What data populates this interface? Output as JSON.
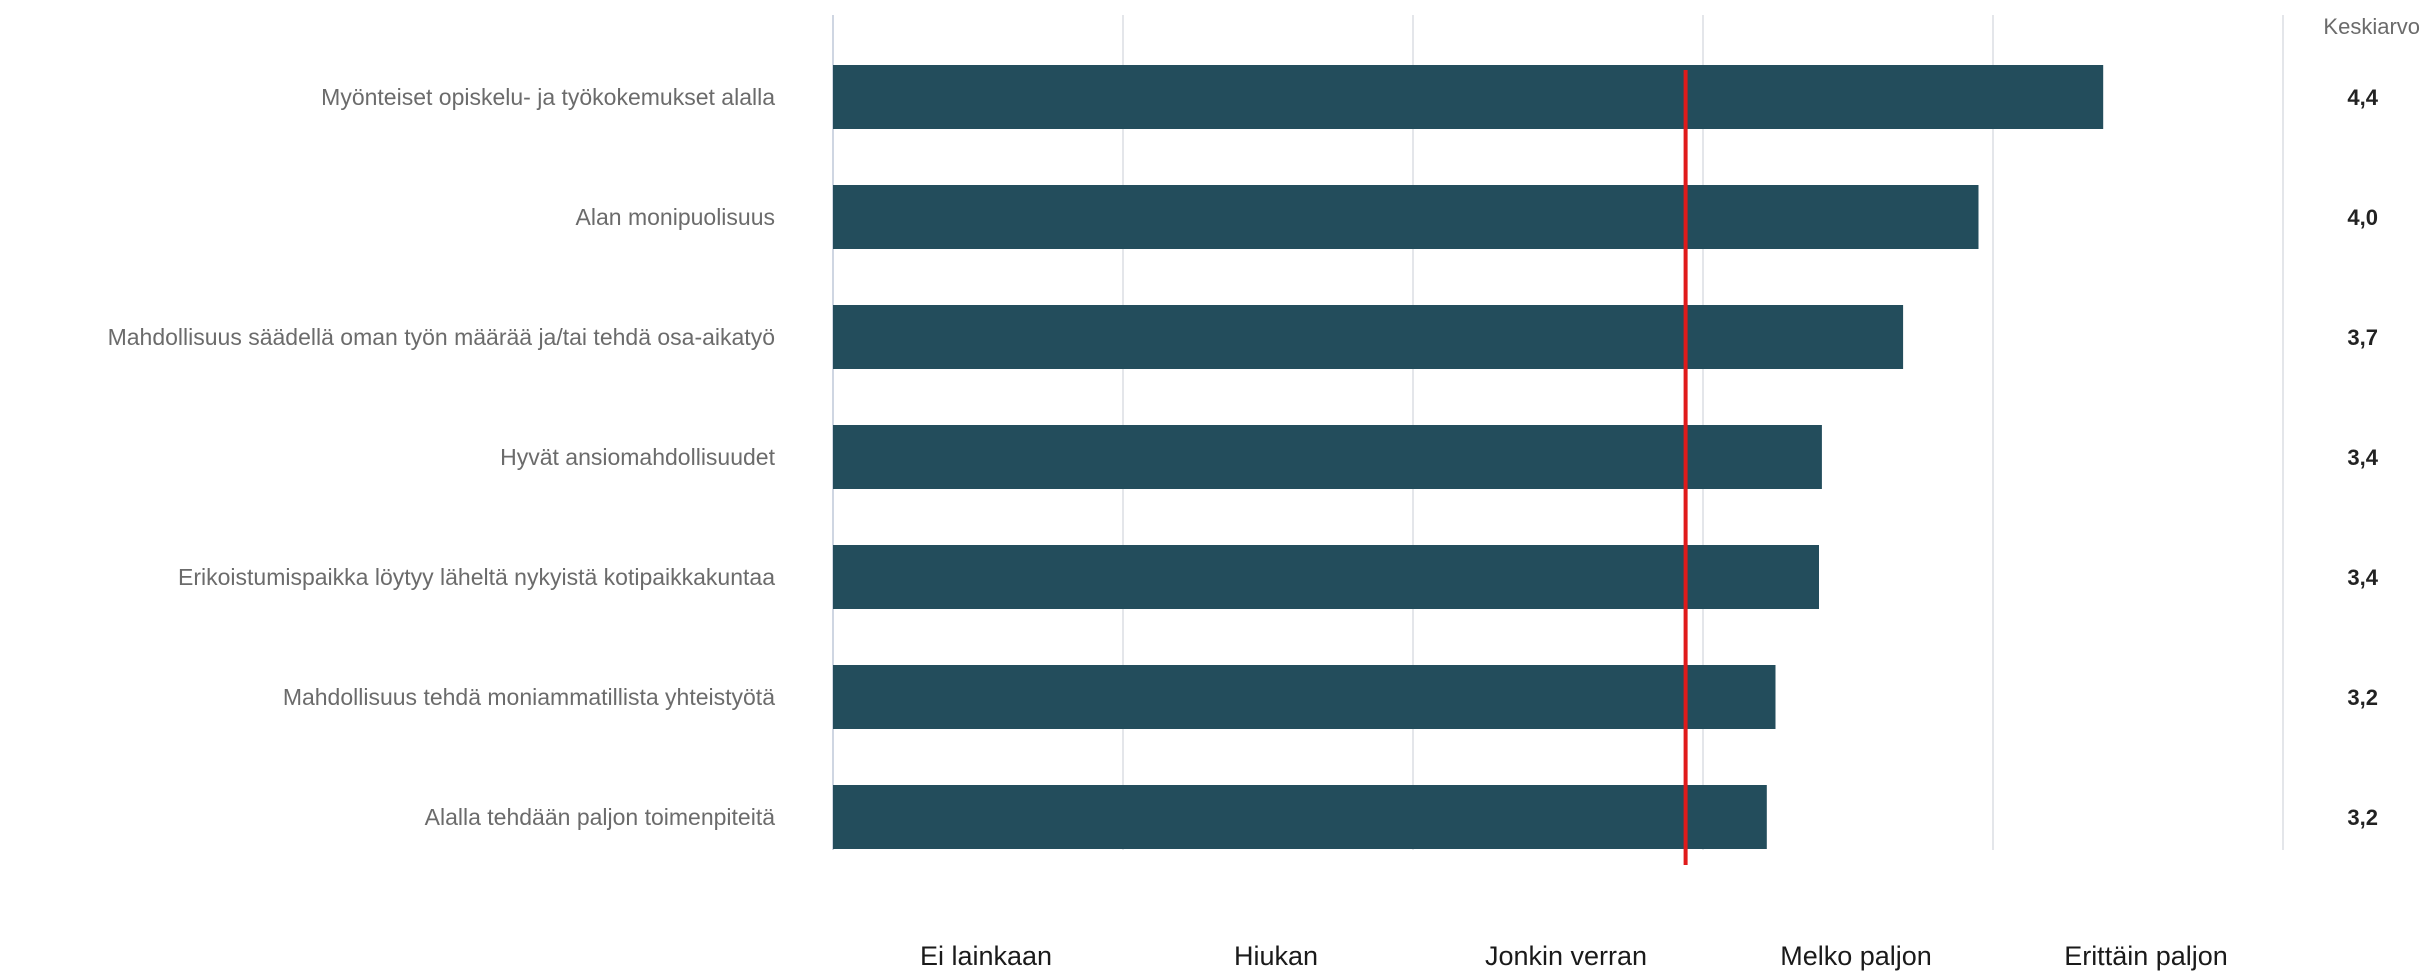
{
  "chart_data": {
    "type": "bar",
    "orientation": "horizontal",
    "value_column_header": "Keskiarvo",
    "categories": [
      "Myönteiset opiskelu- ja työkokemukset alalla",
      "Alan monipuolisuus",
      "Mahdollisuus säädellä oman työn määrää ja/tai tehdä osa-aikatyö",
      "Hyvät ansiomahdollisuudet",
      "Erikoistumispaikka löytyy läheltä nykyistä kotipaikkakuntaa",
      "Mahdollisuus tehdä moniammatillista yhteistyötä",
      "Alalla tehdään paljon toimenpiteitä"
    ],
    "values": [
      4.4,
      4.0,
      3.7,
      3.4,
      3.4,
      3.2,
      3.2
    ],
    "value_labels": [
      "4,4",
      "4,0",
      "3,7",
      "3,4",
      "3,4",
      "3,2",
      "3,2"
    ],
    "bar_ends": [
      4.38,
      3.95,
      3.69,
      3.41,
      3.4,
      3.25,
      3.22
    ],
    "xlim": [
      0,
      5
    ],
    "scale_labels": [
      "Ei lainkaan",
      "Hiukan",
      "Jonkin verran",
      "Melko paljon",
      "Erittäin paljon"
    ],
    "reference_line": 2.94,
    "grid": true,
    "colors": {
      "bar": "#234d5c",
      "reference_line": "#e01b1b",
      "grid": "#e4e6ea",
      "axis": "#cfd6e2"
    }
  }
}
